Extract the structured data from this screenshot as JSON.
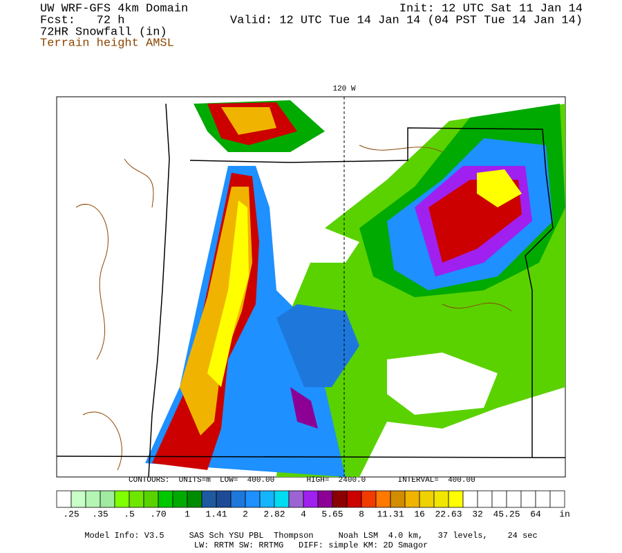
{
  "header": {
    "left": [
      "UW WRF-GFS 4km Domain",
      "Fcst:   72 h",
      "72HR Snowfall (in)"
    ],
    "terrain": "Terrain height AMSL",
    "init": "Init: 12 UTC Sat 11 Jan 14",
    "valid": "Valid: 12 UTC Tue 14 Jan 14 (04 PST Tue 14 Jan 14)"
  },
  "map": {
    "meridian_label": "120 W",
    "contours": "CONTOURS:  UNITS=m  LOW=  400.00       HIGH=  2400.0       INTERVAL=  400.00"
  },
  "colorbar": {
    "colors": [
      "#ffffff",
      "#c8ffc8",
      "#b4f5b4",
      "#a0eba0",
      "#80ff00",
      "#6ee600",
      "#5ad200",
      "#00c800",
      "#00aa00",
      "#008c00",
      "#1e5aa0",
      "#1e4b96",
      "#1e78dc",
      "#1e90ff",
      "#14b4ff",
      "#00dcf0",
      "#9b64d2",
      "#a020f0",
      "#8c0096",
      "#8b0000",
      "#cd0000",
      "#f03c00",
      "#ff7800",
      "#d28c00",
      "#f0b400",
      "#f0d200",
      "#f0e600",
      "#ffff00",
      "#ffffff",
      "#ffffff",
      "#ffffff",
      "#ffffff",
      "#ffffff",
      "#ffffff",
      "#ffffff"
    ],
    "labels": [
      ".25",
      ".35",
      ".5",
      ".70",
      "1",
      "1.41",
      "2",
      "2.82",
      "4",
      "5.65",
      "8",
      "11.31",
      "16",
      "22.63",
      "32",
      "45.25",
      "64"
    ],
    "unit": "in"
  },
  "footer": [
    "Model Info: V3.5     SAS Sch YSU PBL  Thompson     Noah LSM  4.0 km,   37 levels,    24 sec",
    "LW: RRTM SW: RRTMG   DIFF: simple KM: 2D Smagor"
  ]
}
